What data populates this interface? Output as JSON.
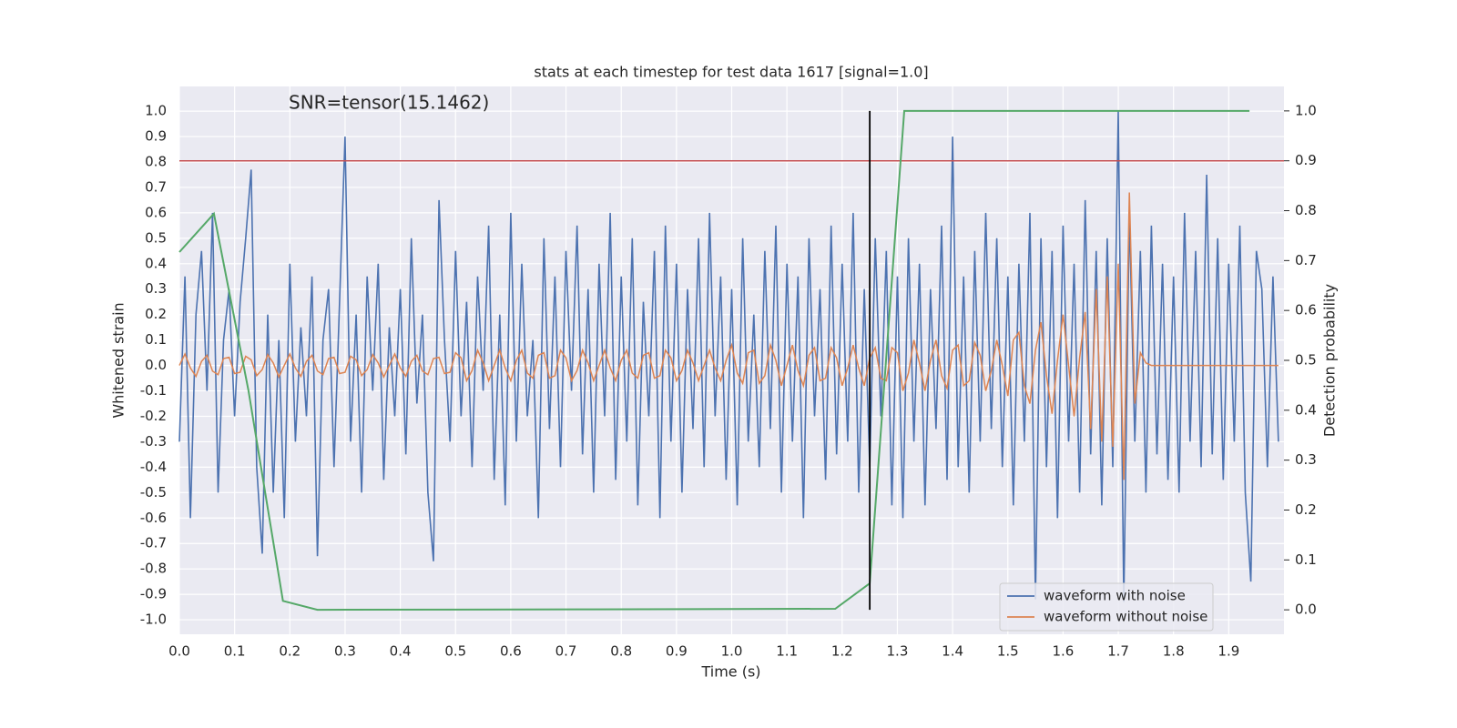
{
  "chart_data": {
    "type": "line",
    "title": "stats at each timestep for test data 1617 [signal=1.0]",
    "annotation": "SNR=tensor(15.1462)",
    "xlabel": "Time (s)",
    "ylabel": "Whitened strain",
    "y2label": "Detection probability",
    "xlim": [
      0,
      2.0
    ],
    "ylim": [
      -1.057,
      1.097
    ],
    "y2lim": [
      -0.049,
      1.049
    ],
    "xticks": [
      {
        "value": 0,
        "label": "0.0"
      },
      0.1,
      0.2,
      0.3,
      0.4,
      0.5,
      0.6,
      0.7,
      0.8,
      0.9,
      {
        "value": 1,
        "label": "1.0"
      },
      1.1,
      1.2,
      1.3,
      1.4,
      1.5,
      1.6,
      1.7,
      1.8,
      1.9
    ],
    "yticks": [
      {
        "value": -1,
        "label": "-1.0"
      },
      -0.9,
      -0.8,
      -0.7,
      -0.6,
      -0.5,
      -0.4,
      -0.3,
      -0.2,
      -0.1,
      {
        "value": 0,
        "label": "0.0"
      },
      0.1,
      0.2,
      0.3,
      0.4,
      0.5,
      0.6,
      0.7,
      0.8,
      0.9,
      {
        "value": 1,
        "label": "1.0"
      }
    ],
    "y2ticks": [
      {
        "value": 0,
        "label": "0.0"
      },
      0.1,
      0.2,
      0.3,
      0.4,
      0.5,
      0.6,
      0.7,
      0.8,
      0.9,
      {
        "value": 1,
        "label": "1.0"
      }
    ],
    "grid": true,
    "legend": "lower right",
    "x": [
      0,
      0.01,
      0.02,
      0.03,
      0.04,
      0.05,
      0.06,
      0.07,
      0.08,
      0.09,
      0.1,
      0.11,
      0.12,
      0.13,
      0.14,
      0.15,
      0.16,
      0.17,
      0.18,
      0.19,
      0.2,
      0.21,
      0.22,
      0.23,
      0.24,
      0.25,
      0.26,
      0.27,
      0.28,
      0.29,
      0.3,
      0.31,
      0.32,
      0.33,
      0.34,
      0.35,
      0.36,
      0.37,
      0.38,
      0.39,
      0.4,
      0.41,
      0.42,
      0.43,
      0.44,
      0.45,
      0.46,
      0.47,
      0.48,
      0.49,
      0.5,
      0.51,
      0.52,
      0.53,
      0.54,
      0.55,
      0.56,
      0.57,
      0.58,
      0.59,
      0.6,
      0.61,
      0.62,
      0.63,
      0.64,
      0.65,
      0.66,
      0.67,
      0.68,
      0.69,
      0.7,
      0.71,
      0.72,
      0.73,
      0.74,
      0.75,
      0.76,
      0.77,
      0.78,
      0.79,
      0.8,
      0.81,
      0.82,
      0.83,
      0.84,
      0.85,
      0.86,
      0.87,
      0.88,
      0.89,
      0.9,
      0.91,
      0.92,
      0.93,
      0.94,
      0.95,
      0.96,
      0.97,
      0.98,
      0.99,
      1.0,
      1.01,
      1.02,
      1.03,
      1.04,
      1.05,
      1.06,
      1.07,
      1.08,
      1.09,
      1.1,
      1.11,
      1.12,
      1.13,
      1.14,
      1.15,
      1.16,
      1.17,
      1.18,
      1.19,
      1.2,
      1.21,
      1.22,
      1.23,
      1.24,
      1.25,
      1.26,
      1.27,
      1.28,
      1.29,
      1.3,
      1.31,
      1.32,
      1.33,
      1.34,
      1.35,
      1.36,
      1.37,
      1.38,
      1.39,
      1.4,
      1.41,
      1.42,
      1.43,
      1.44,
      1.45,
      1.46,
      1.47,
      1.48,
      1.49,
      1.5,
      1.51,
      1.52,
      1.53,
      1.54,
      1.55,
      1.56,
      1.57,
      1.58,
      1.59,
      1.6,
      1.61,
      1.62,
      1.63,
      1.64,
      1.65,
      1.66,
      1.67,
      1.68,
      1.69,
      1.7,
      1.71,
      1.72,
      1.73,
      1.74,
      1.75,
      1.76,
      1.77,
      1.78,
      1.79,
      1.8,
      1.81,
      1.82,
      1.83,
      1.84,
      1.85,
      1.86,
      1.87,
      1.88,
      1.89,
      1.9,
      1.91,
      1.92,
      1.93,
      1.94,
      1.95,
      1.96,
      1.97,
      1.98,
      1.99
    ],
    "series": [
      {
        "name": "waveform with noise",
        "color": "#4c72b0",
        "values": [
          -0.3,
          0.35,
          -0.6,
          0.2,
          0.45,
          -0.1,
          0.6,
          -0.5,
          0.1,
          0.3,
          -0.2,
          0.25,
          0.5,
          0.77,
          -0.4,
          -0.74,
          0.2,
          -0.5,
          0.1,
          -0.6,
          0.4,
          -0.3,
          0.15,
          -0.2,
          0.35,
          -0.75,
          0.1,
          0.3,
          -0.4,
          0.25,
          0.9,
          -0.3,
          0.2,
          -0.5,
          0.35,
          -0.1,
          0.4,
          -0.45,
          0.15,
          -0.2,
          0.3,
          -0.35,
          0.5,
          -0.15,
          0.2,
          -0.5,
          -0.77,
          0.65,
          0.1,
          -0.3,
          0.45,
          -0.2,
          0.25,
          -0.4,
          0.35,
          -0.1,
          0.55,
          -0.45,
          0.2,
          -0.55,
          0.6,
          -0.3,
          0.4,
          -0.2,
          0.1,
          -0.6,
          0.5,
          -0.25,
          0.35,
          -0.4,
          0.45,
          -0.1,
          0.55,
          -0.35,
          0.3,
          -0.5,
          0.4,
          -0.2,
          0.6,
          -0.45,
          0.35,
          -0.3,
          0.5,
          -0.55,
          0.25,
          -0.2,
          0.45,
          -0.6,
          0.55,
          -0.3,
          0.4,
          -0.5,
          0.3,
          -0.25,
          0.5,
          -0.4,
          0.6,
          -0.2,
          0.35,
          -0.45,
          0.3,
          -0.55,
          0.5,
          -0.3,
          0.2,
          -0.4,
          0.45,
          -0.25,
          0.55,
          -0.5,
          0.4,
          -0.3,
          0.35,
          -0.6,
          0.5,
          -0.2,
          0.3,
          -0.45,
          0.55,
          -0.35,
          0.4,
          -0.3,
          0.6,
          -0.5,
          0.3,
          -0.4,
          0.5,
          -0.2,
          0.45,
          -0.55,
          0.35,
          -0.6,
          0.5,
          -0.3,
          0.4,
          -0.55,
          0.3,
          -0.25,
          0.55,
          -0.45,
          0.9,
          -0.4,
          0.35,
          -0.5,
          0.45,
          -0.3,
          0.6,
          -0.25,
          0.5,
          -0.4,
          0.35,
          -0.55,
          0.4,
          -0.3,
          0.6,
          -0.92,
          0.5,
          -0.4,
          0.45,
          -0.6,
          0.55,
          -0.3,
          0.4,
          -0.5,
          0.65,
          -0.35,
          0.45,
          -0.55,
          0.5,
          -0.4,
          1.0,
          -0.93,
          0.6,
          -0.3,
          0.45,
          -0.5,
          0.55,
          -0.35,
          0.4,
          -0.45,
          0.35,
          -0.5,
          0.6,
          -0.3,
          0.45,
          -0.4,
          0.75,
          -0.35,
          0.5,
          -0.45,
          0.4,
          -0.3,
          0.55,
          -0.5,
          -0.85,
          0.45,
          0.3,
          -0.4,
          0.35,
          -0.3
        ]
      },
      {
        "name": "waveform without noise",
        "color": "#dd8452",
        "values": [
          0,
          0.045,
          -0.01,
          -0.043,
          0.016,
          0.04,
          -0.022,
          -0.036,
          0.027,
          0.032,
          -0.032,
          -0.027,
          0.036,
          0.022,
          -0.04,
          -0.016,
          0.043,
          0.01,
          -0.045,
          0,
          0.045,
          -0.01,
          -0.043,
          0.016,
          0.04,
          -0.022,
          -0.036,
          0.027,
          0.032,
          -0.032,
          -0.027,
          0.036,
          0.022,
          -0.04,
          -0.016,
          0.043,
          0.01,
          -0.045,
          0,
          0.045,
          -0.01,
          -0.043,
          0.016,
          0.04,
          -0.022,
          -0.036,
          0.027,
          0.032,
          -0.032,
          -0.027,
          0.05,
          0.03,
          -0.06,
          -0.02,
          0.06,
          0.01,
          -0.06,
          0,
          0.06,
          -0.01,
          -0.06,
          0.02,
          0.06,
          -0.03,
          -0.05,
          0.04,
          0.05,
          -0.05,
          -0.04,
          0.06,
          0.03,
          -0.06,
          -0.02,
          0.06,
          0.01,
          -0.06,
          0,
          0.06,
          -0.01,
          -0.06,
          0.02,
          0.06,
          -0.03,
          -0.05,
          0.04,
          0.05,
          -0.05,
          -0.04,
          0.06,
          0.03,
          -0.06,
          -0.02,
          0.06,
          0.01,
          -0.06,
          0,
          0.06,
          -0.01,
          -0.06,
          0.02,
          0.08,
          -0.03,
          -0.07,
          0.05,
          0.06,
          -0.07,
          -0.04,
          0.08,
          0.02,
          -0.08,
          0,
          0.08,
          -0.02,
          -0.08,
          0.04,
          0.07,
          -0.06,
          -0.05,
          0.07,
          0.03,
          -0.08,
          -0.01,
          0.08,
          -0.01,
          -0.08,
          0.03,
          0.07,
          -0.05,
          -0.06,
          0.07,
          0.05,
          -0.1,
          -0.03,
          0.1,
          0.01,
          -0.1,
          0.02,
          0.1,
          -0.04,
          -0.09,
          0.06,
          0.08,
          -0.08,
          -0.06,
          0.09,
          0.04,
          -0.1,
          -0.02,
          0.1,
          0,
          -0.12,
          0.1,
          0.13,
          -0.08,
          -0.15,
          0.06,
          0.17,
          -0.04,
          -0.19,
          0.02,
          0.2,
          0,
          -0.2,
          0.03,
          0.21,
          -0.25,
          0.3,
          -0.3,
          0.35,
          -0.32,
          0.4,
          -0.45,
          0.68,
          -0.15,
          0.05,
          0.01,
          0,
          0,
          0,
          0,
          0,
          0,
          0,
          0,
          0,
          0,
          0,
          0,
          0,
          0,
          0,
          0,
          0,
          0,
          0,
          0,
          0,
          0,
          0,
          0
        ]
      }
    ],
    "probability": {
      "axis": "y2",
      "color": "#55a868",
      "x": [
        0,
        0.0625,
        0.125,
        0.1875,
        0.25,
        0.75,
        1.1875,
        1.25,
        1.3125,
        1.4375,
        1.9375
      ],
      "values": [
        0.717,
        0.794,
        0.44,
        0.018,
        0,
        0.001,
        0.002,
        0.053,
        1.0,
        1.0,
        1.0
      ]
    },
    "threshold": {
      "axis": "y2",
      "value": 0.9,
      "color": "#c44e52"
    },
    "vline": {
      "x": 1.25,
      "ymin": 0,
      "ymax": 1,
      "color": "#000000"
    }
  }
}
